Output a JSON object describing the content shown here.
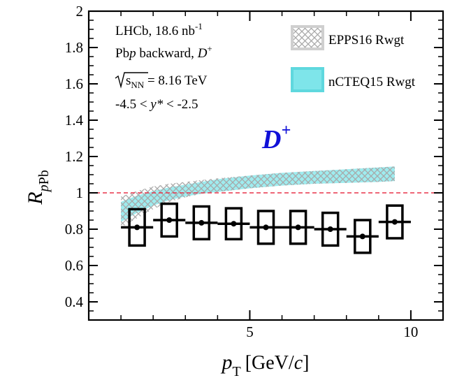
{
  "chart_data": {
    "type": "scatter",
    "title": "",
    "xlabel": "p_T [GeV/c]",
    "xlabel_parts": {
      "p": "p",
      "T": "T",
      "units": "[GeV/",
      "c": "c",
      "close": "]"
    },
    "ylabel_parts": {
      "R": "R",
      "sub_p": "p",
      "sub_Pb": "Pb"
    },
    "xlim": [
      0,
      11
    ],
    "ylim": [
      0.3,
      2.0
    ],
    "x_ticks": [
      5,
      10
    ],
    "x_tick_labels": [
      "5",
      "10"
    ],
    "y_ticks": [
      0.4,
      0.6,
      0.8,
      1.0,
      1.2,
      1.4,
      1.6,
      1.8,
      2.0
    ],
    "y_tick_labels": [
      "0.4",
      "0.6",
      "0.8",
      "1",
      "1.2",
      "1.4",
      "1.6",
      "1.8",
      "2"
    ],
    "reference_line": {
      "y": 1.0,
      "color": "#e8334a",
      "style": "dashed"
    },
    "info_lines": {
      "line1": "LHCb, 18.6 nb",
      "line1_sup": "-1",
      "line2_a": "Pb",
      "line2_b": "p",
      "line2_c": " backward, ",
      "line2_d": "D",
      "line2_e": "+",
      "line3_s": "s",
      "line3_sub": "NN",
      "line3_rest": " = 8.16 TeV",
      "line4_a": "-4.5 < ",
      "line4_b": "y*",
      "line4_c": " < -2.5"
    },
    "particle_label": {
      "text": "D",
      "sup": "+",
      "color": "#1010d8"
    },
    "legend": [
      {
        "name": "EPPS16 Rwgt",
        "color": "#aaaaaa",
        "style": "hatched"
      },
      {
        "name": "nCTEQ15 Rwgt",
        "color": "#7ee5ea",
        "style": "filled"
      }
    ],
    "series": [
      {
        "name": "Data",
        "x": [
          1.5,
          2.5,
          3.5,
          4.5,
          5.5,
          6.5,
          7.5,
          8.5,
          9.5
        ],
        "x_err": [
          0.5,
          0.5,
          0.5,
          0.5,
          0.5,
          0.5,
          0.5,
          0.5,
          0.5
        ],
        "y": [
          0.81,
          0.85,
          0.835,
          0.83,
          0.81,
          0.81,
          0.8,
          0.76,
          0.84
        ],
        "sys_lo": [
          0.71,
          0.76,
          0.745,
          0.745,
          0.72,
          0.72,
          0.71,
          0.67,
          0.75
        ],
        "sys_hi": [
          0.91,
          0.94,
          0.925,
          0.915,
          0.9,
          0.9,
          0.89,
          0.85,
          0.93
        ]
      }
    ],
    "bands": [
      {
        "name": "nCTEQ15 Rwgt",
        "color": "#7ee5ea",
        "x": [
          1.0,
          1.5,
          2.0,
          2.5,
          3.0,
          3.5,
          4.0,
          5.0,
          6.0,
          7.0,
          8.0,
          9.0,
          9.5
        ],
        "lo": [
          0.84,
          0.89,
          0.93,
          0.96,
          0.98,
          0.995,
          1.005,
          1.025,
          1.04,
          1.05,
          1.055,
          1.06,
          1.065
        ],
        "hi": [
          0.95,
          0.985,
          1.01,
          1.03,
          1.045,
          1.06,
          1.075,
          1.095,
          1.11,
          1.12,
          1.13,
          1.14,
          1.145
        ]
      },
      {
        "name": "EPPS16 Rwgt",
        "color": "#aaaaaa",
        "x": [
          1.0,
          1.5,
          2.0,
          2.5,
          3.0,
          3.5,
          4.0,
          5.0,
          6.0,
          7.0,
          8.0,
          9.0,
          9.5
        ],
        "lo": [
          0.81,
          0.86,
          0.91,
          0.95,
          0.975,
          0.995,
          1.005,
          1.025,
          1.04,
          1.05,
          1.055,
          1.06,
          1.065
        ],
        "hi": [
          0.98,
          1.01,
          1.035,
          1.05,
          1.06,
          1.07,
          1.08,
          1.095,
          1.11,
          1.12,
          1.13,
          1.14,
          1.145
        ]
      }
    ]
  }
}
